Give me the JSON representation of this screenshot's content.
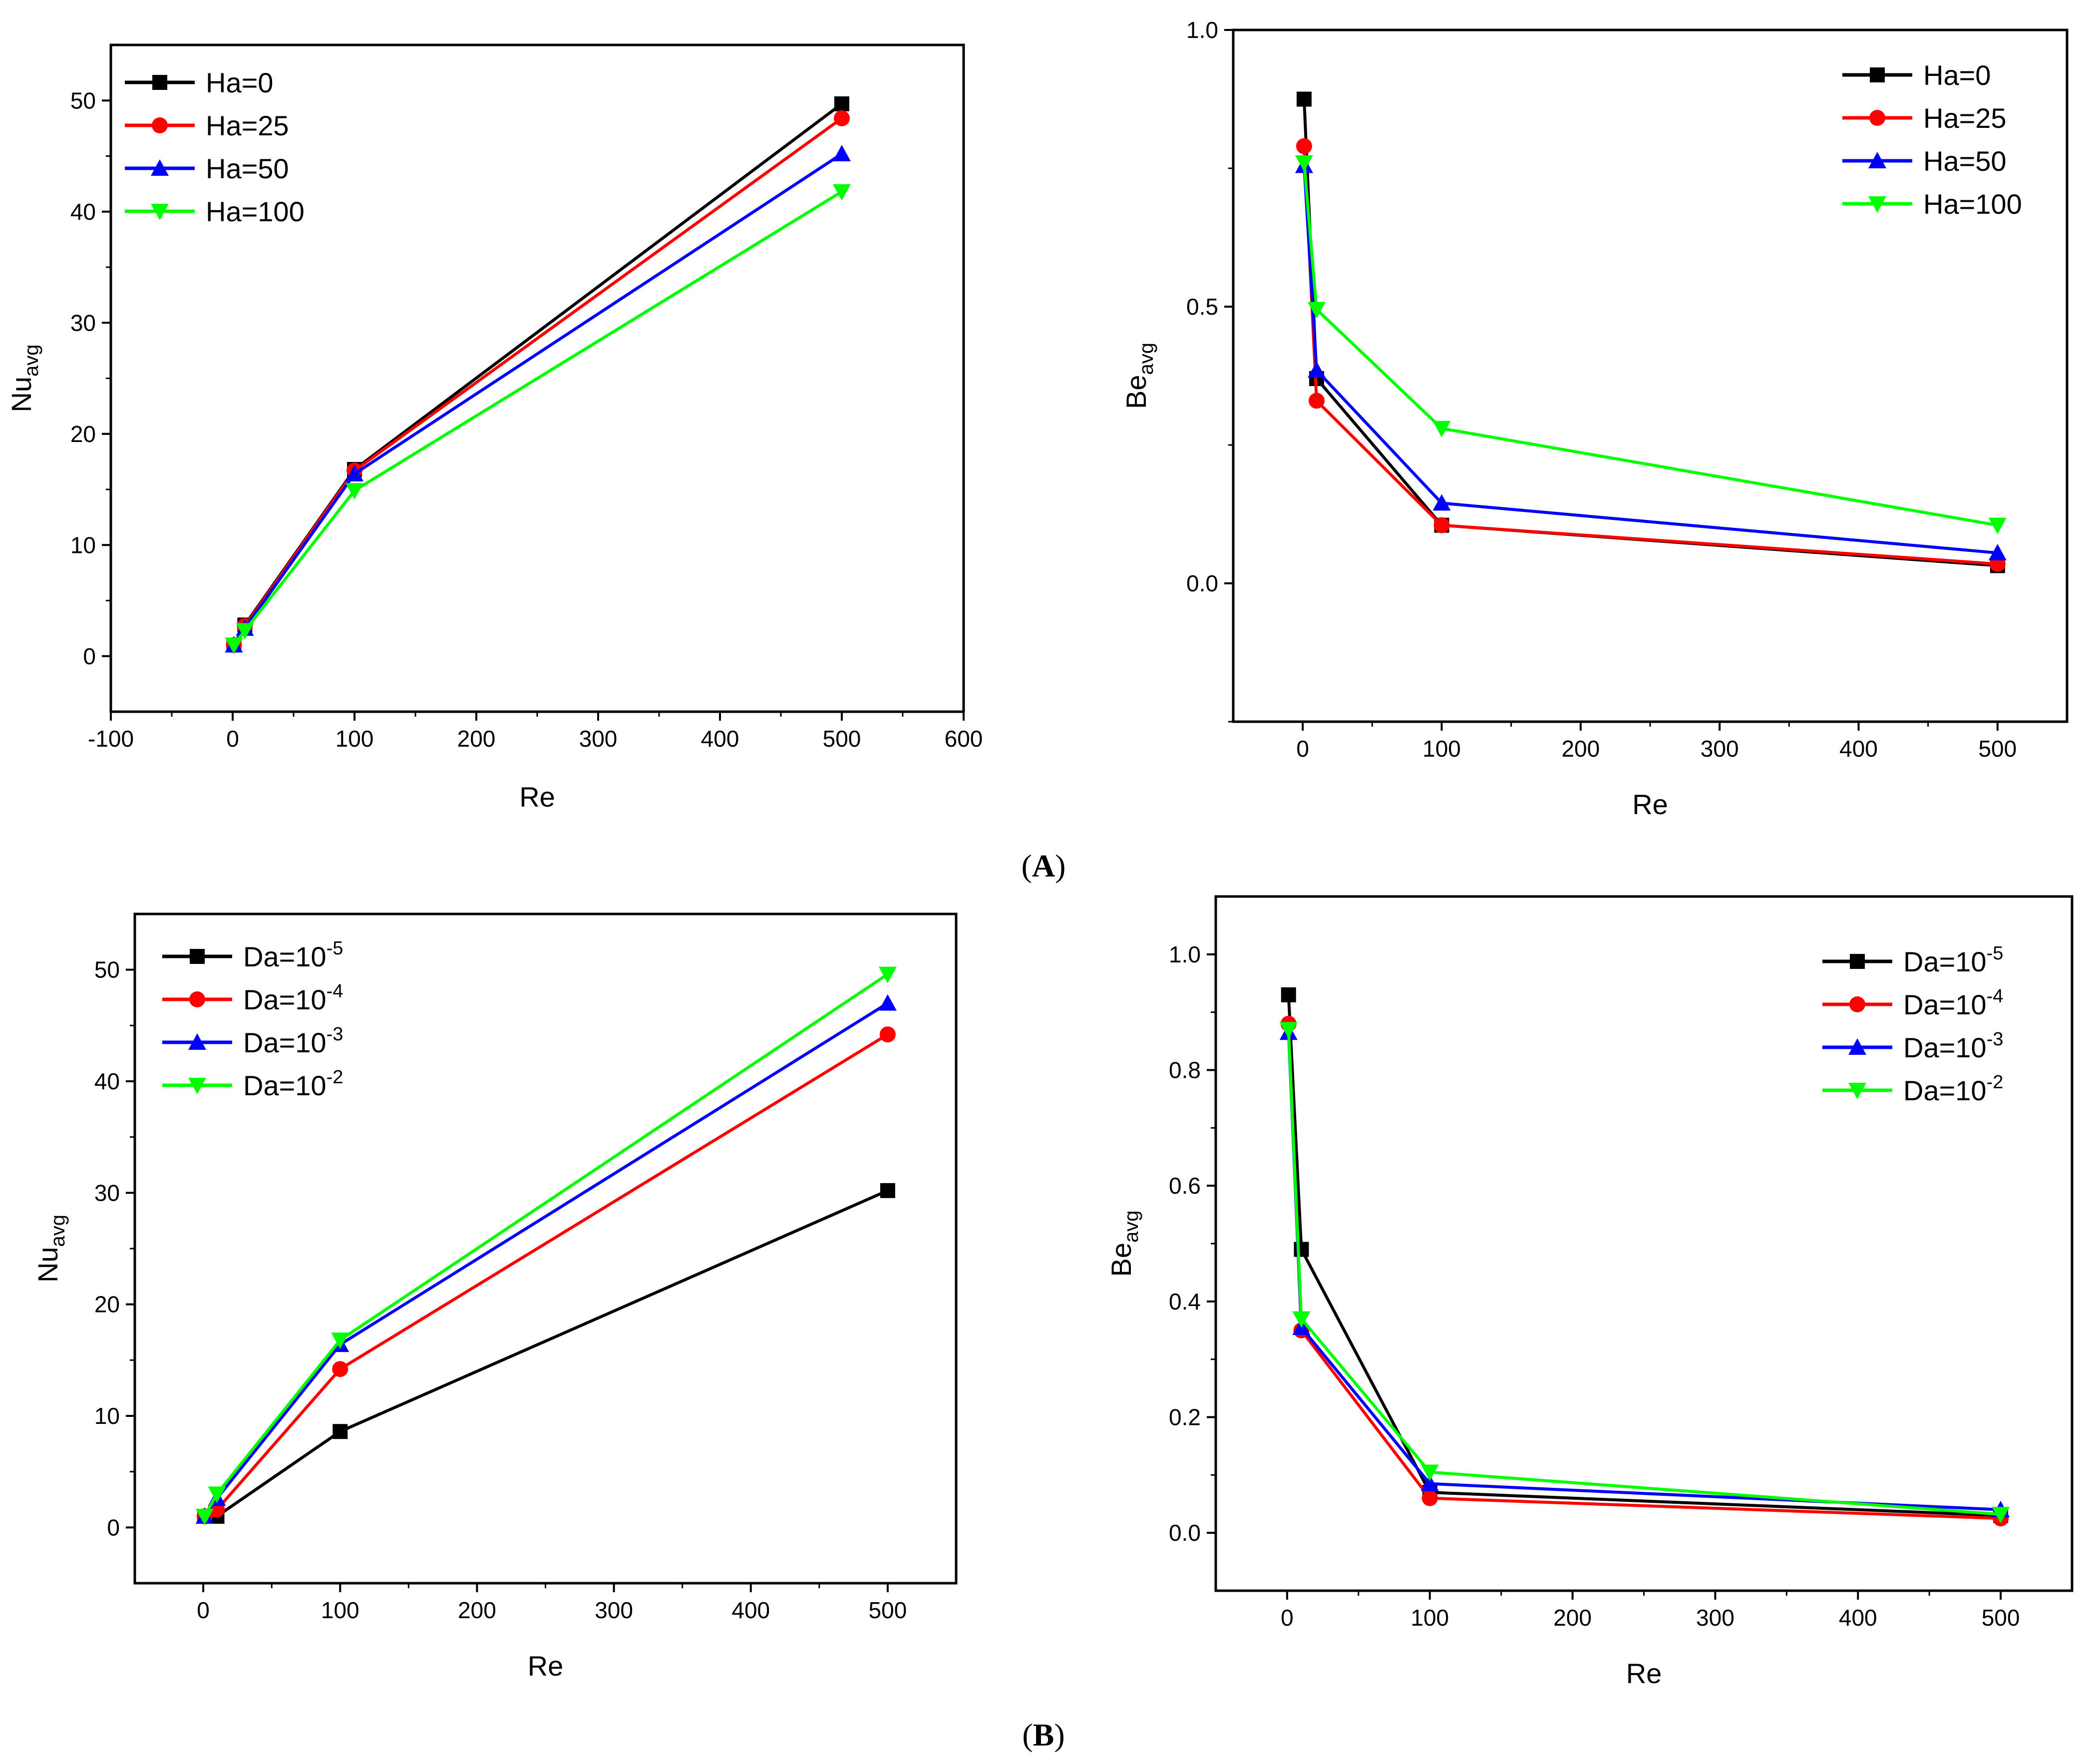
{
  "figure": {
    "panel_labels": [
      {
        "open": "(",
        "letter": "A",
        "close": ")"
      },
      {
        "open": "(",
        "letter": "B",
        "close": ")"
      }
    ]
  },
  "chart_data": [
    {
      "id": "A-nu",
      "type": "line",
      "xlabel": "Re",
      "ylabel": "Nu",
      "ylabel_sub": "avg",
      "xlim": [
        -100,
        600
      ],
      "ylim": [
        -5,
        55
      ],
      "xticks": [
        -100,
        0,
        100,
        200,
        300,
        400,
        500,
        600
      ],
      "yticks": [
        0,
        10,
        20,
        30,
        40,
        50
      ],
      "xminor": [
        -50,
        50,
        150,
        250,
        350,
        450,
        550
      ],
      "yminor": [
        5,
        15,
        25,
        35,
        45
      ],
      "legend_position": "top-left",
      "series": [
        {
          "name": "Ha=0",
          "color": "#000000",
          "marker": "square",
          "x": [
            1,
            10,
            100,
            500
          ],
          "y": [
            1.0,
            2.8,
            16.8,
            49.7
          ]
        },
        {
          "name": "Ha=25",
          "color": "#ff0000",
          "marker": "circle",
          "x": [
            1,
            10,
            100,
            500
          ],
          "y": [
            1.0,
            2.7,
            16.7,
            48.4
          ]
        },
        {
          "name": "Ha=50",
          "color": "#0000ff",
          "marker": "triangle-up",
          "x": [
            1,
            10,
            100,
            500
          ],
          "y": [
            1.0,
            2.5,
            16.4,
            45.2
          ]
        },
        {
          "name": "Ha=100",
          "color": "#00ff00",
          "marker": "triangle-down",
          "x": [
            1,
            10,
            100,
            500
          ],
          "y": [
            1.0,
            2.3,
            14.9,
            41.8
          ]
        }
      ]
    },
    {
      "id": "A-be",
      "type": "line",
      "xlabel": "Re",
      "ylabel": "Be",
      "ylabel_sub": "avg",
      "xlim": [
        -50,
        550
      ],
      "ylim": [
        -0.25,
        1.0
      ],
      "xticks": [
        0,
        100,
        200,
        300,
        400,
        500
      ],
      "yticks": [
        0.0,
        0.5,
        1.0
      ],
      "ytick_labels": [
        "0.0",
        "0.5",
        "1.0"
      ],
      "xminor": [
        50,
        150,
        250,
        350,
        450
      ],
      "yminor": [
        -0.25,
        0.25,
        0.75
      ],
      "legend_position": "top-right",
      "series": [
        {
          "name": "Ha=0",
          "color": "#000000",
          "marker": "square",
          "x": [
            1,
            10,
            100,
            500
          ],
          "y": [
            0.875,
            0.37,
            0.105,
            0.032
          ]
        },
        {
          "name": "Ha=25",
          "color": "#ff0000",
          "marker": "circle",
          "x": [
            1,
            10,
            100,
            500
          ],
          "y": [
            0.79,
            0.33,
            0.105,
            0.035
          ]
        },
        {
          "name": "Ha=50",
          "color": "#0000ff",
          "marker": "triangle-up",
          "x": [
            1,
            10,
            100,
            500
          ],
          "y": [
            0.755,
            0.385,
            0.145,
            0.055
          ]
        },
        {
          "name": "Ha=100",
          "color": "#00ff00",
          "marker": "triangle-down",
          "x": [
            1,
            10,
            100,
            500
          ],
          "y": [
            0.76,
            0.495,
            0.28,
            0.105
          ]
        }
      ]
    },
    {
      "id": "B-nu",
      "type": "line",
      "xlabel": "Re",
      "ylabel": "Nu",
      "ylabel_sub": "avg",
      "xlim": [
        -50,
        550
      ],
      "ylim": [
        -5,
        55
      ],
      "xticks": [
        0,
        100,
        200,
        300,
        400,
        500
      ],
      "yticks": [
        0,
        10,
        20,
        30,
        40,
        50
      ],
      "xminor": [
        50,
        150,
        250,
        350,
        450
      ],
      "yminor": [
        5,
        15,
        25,
        35,
        45
      ],
      "legend_position": "top-left",
      "series": [
        {
          "name": "Da=10",
          "exp": "-5",
          "color": "#000000",
          "marker": "square",
          "x": [
            1,
            10,
            100,
            500
          ],
          "y": [
            1.0,
            1.0,
            8.6,
            30.2
          ]
        },
        {
          "name": "Da=10",
          "exp": "-4",
          "color": "#ff0000",
          "marker": "circle",
          "x": [
            1,
            10,
            100,
            500
          ],
          "y": [
            1.0,
            1.6,
            14.2,
            44.2
          ]
        },
        {
          "name": "Da=10",
          "exp": "-3",
          "color": "#0000ff",
          "marker": "triangle-up",
          "x": [
            1,
            10,
            100,
            500
          ],
          "y": [
            1.0,
            2.6,
            16.4,
            47.0
          ]
        },
        {
          "name": "Da=10",
          "exp": "-2",
          "color": "#00ff00",
          "marker": "triangle-down",
          "x": [
            1,
            10,
            100,
            500
          ],
          "y": [
            1.0,
            3.0,
            16.8,
            49.6
          ]
        }
      ]
    },
    {
      "id": "B-be",
      "type": "line",
      "xlabel": "Re",
      "ylabel": "Be",
      "ylabel_sub": "avg",
      "xlim": [
        -50,
        550
      ],
      "ylim": [
        -0.1,
        1.1
      ],
      "xticks": [
        0,
        100,
        200,
        300,
        400,
        500
      ],
      "yticks": [
        0.0,
        0.2,
        0.4,
        0.6,
        0.8,
        1.0
      ],
      "ytick_labels": [
        "0.0",
        "0.2",
        "0.4",
        "0.6",
        "0.8",
        "1.0"
      ],
      "xminor": [
        50,
        150,
        250,
        350,
        450
      ],
      "yminor": [
        0.1,
        0.3,
        0.5,
        0.7,
        0.9
      ],
      "legend_position": "top-right",
      "series": [
        {
          "name": "Da=10",
          "exp": "-5",
          "color": "#000000",
          "marker": "square",
          "x": [
            1,
            10,
            100,
            500
          ],
          "y": [
            0.93,
            0.49,
            0.07,
            0.03
          ]
        },
        {
          "name": "Da=10",
          "exp": "-4",
          "color": "#ff0000",
          "marker": "circle",
          "x": [
            1,
            10,
            100,
            500
          ],
          "y": [
            0.88,
            0.35,
            0.06,
            0.025
          ]
        },
        {
          "name": "Da=10",
          "exp": "-3",
          "color": "#0000ff",
          "marker": "triangle-up",
          "x": [
            1,
            10,
            100,
            500
          ],
          "y": [
            0.865,
            0.355,
            0.085,
            0.04
          ]
        },
        {
          "name": "Da=10",
          "exp": "-2",
          "color": "#00ff00",
          "marker": "triangle-down",
          "x": [
            1,
            10,
            100,
            500
          ],
          "y": [
            0.87,
            0.37,
            0.105,
            0.032
          ]
        }
      ]
    }
  ]
}
